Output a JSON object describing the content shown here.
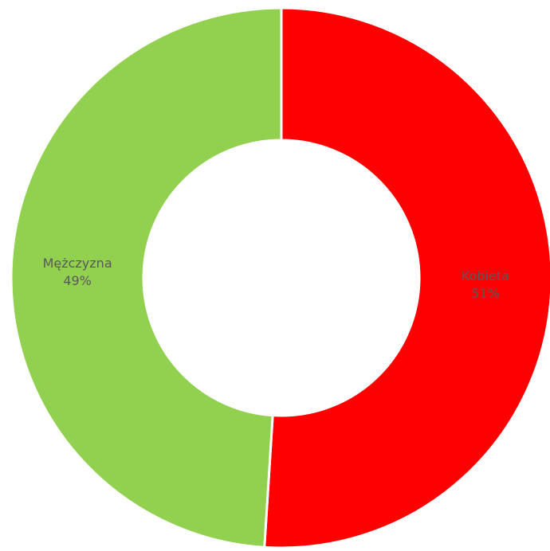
{
  "chart_data": {
    "type": "pie",
    "title": "",
    "slices": [
      {
        "label": "Kobieta",
        "value": 51,
        "percent_label": "51%",
        "color": "#FF0000"
      },
      {
        "label": "Mężczyzna",
        "value": 49,
        "percent_label": "49%",
        "color": "#92D050"
      }
    ],
    "start_angle_deg": 0,
    "direction": "clockwise",
    "donut": true,
    "legend": "none",
    "data_labels": "category and percentage inside slices",
    "separator_color": "#FFFFFF"
  }
}
